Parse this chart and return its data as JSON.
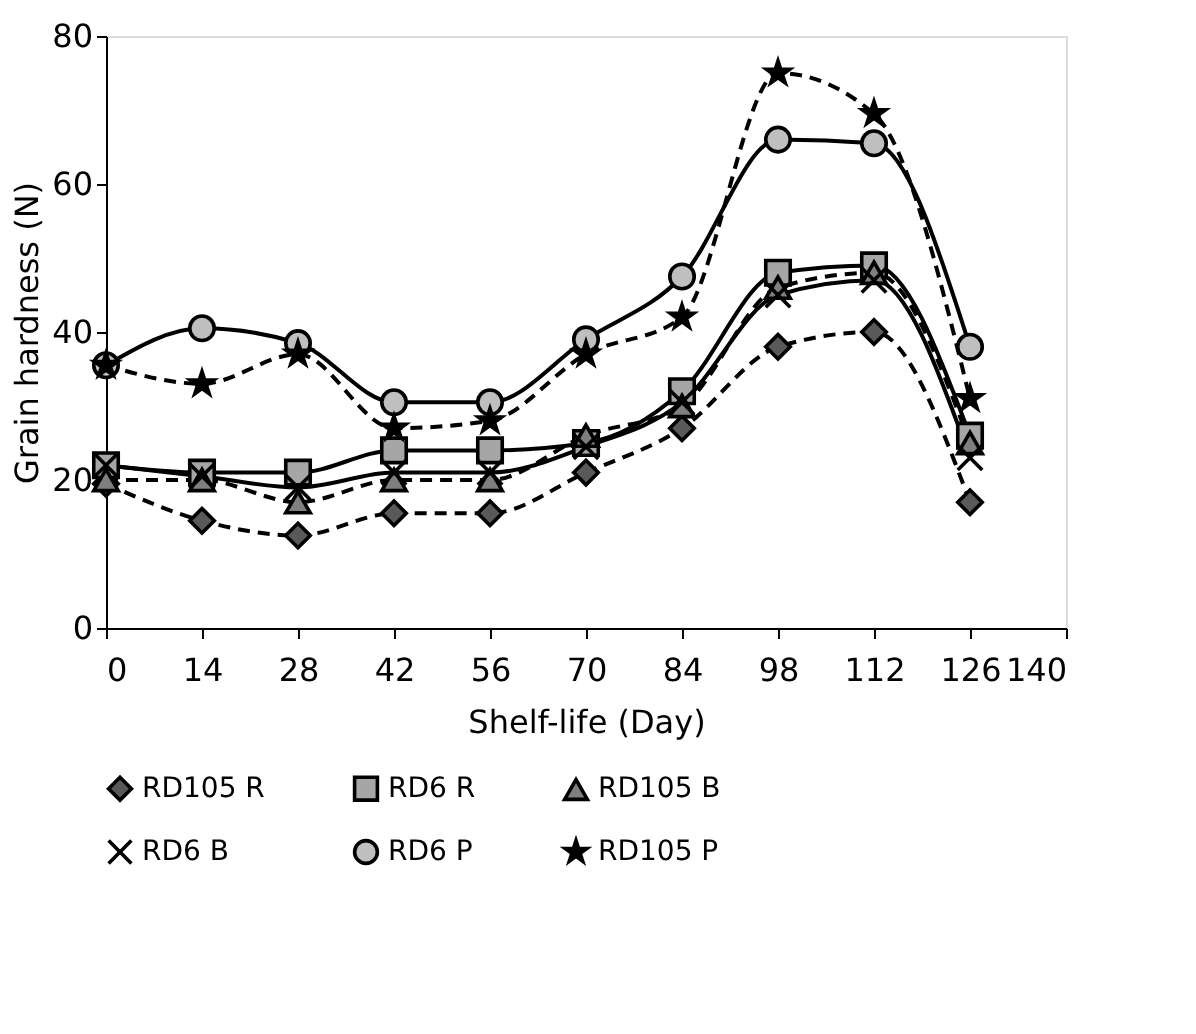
{
  "chart_data": {
    "type": "line",
    "xlabel": "Shelf-life (Day)",
    "ylabel": "Grain hardness (N)",
    "x": [
      0,
      14,
      28,
      42,
      56,
      70,
      84,
      98,
      112,
      126
    ],
    "xlim": [
      0,
      140
    ],
    "xticks": [
      0,
      14,
      28,
      42,
      56,
      70,
      84,
      98,
      112,
      126,
      140
    ],
    "ylim": [
      0,
      80
    ],
    "yticks": [
      0,
      20,
      40,
      60,
      80
    ],
    "grid": false,
    "legend": "bottom",
    "series": [
      {
        "name": "RD105 R",
        "color": "#595959",
        "marker": "diamond",
        "line_style": "dashed",
        "values": [
          19.5,
          14.5,
          12.5,
          15.5,
          15.5,
          21,
          27,
          38,
          40,
          17
        ]
      },
      {
        "name": "RD6 R",
        "color": "#a6a6a6",
        "marker": "square",
        "line_style": "solid",
        "values": [
          22,
          21,
          21,
          24,
          24,
          25,
          32,
          48,
          49,
          26
        ]
      },
      {
        "name": "RD105 B",
        "color": "#7f7f7f",
        "marker": "triangle",
        "line_style": "dashed",
        "values": [
          20,
          20,
          17,
          20,
          20,
          26,
          30,
          46,
          48,
          25
        ]
      },
      {
        "name": "RD6 B",
        "color": "#000000",
        "marker": "cross",
        "line_style": "solid",
        "values": [
          22,
          20.5,
          19,
          21,
          21,
          24.5,
          30.5,
          45,
          47,
          23
        ]
      },
      {
        "name": "RD6 P",
        "color": "#bfbfbf",
        "marker": "circle",
        "line_style": "solid",
        "values": [
          35.5,
          40.5,
          38.5,
          30.5,
          30.5,
          39,
          47.5,
          66,
          65.5,
          38
        ]
      },
      {
        "name": "RD105 P",
        "color": "#000000",
        "marker": "star",
        "line_style": "dashed",
        "values": [
          35.5,
          33,
          37,
          27,
          28,
          37,
          42,
          75,
          69.5,
          31
        ]
      }
    ]
  }
}
